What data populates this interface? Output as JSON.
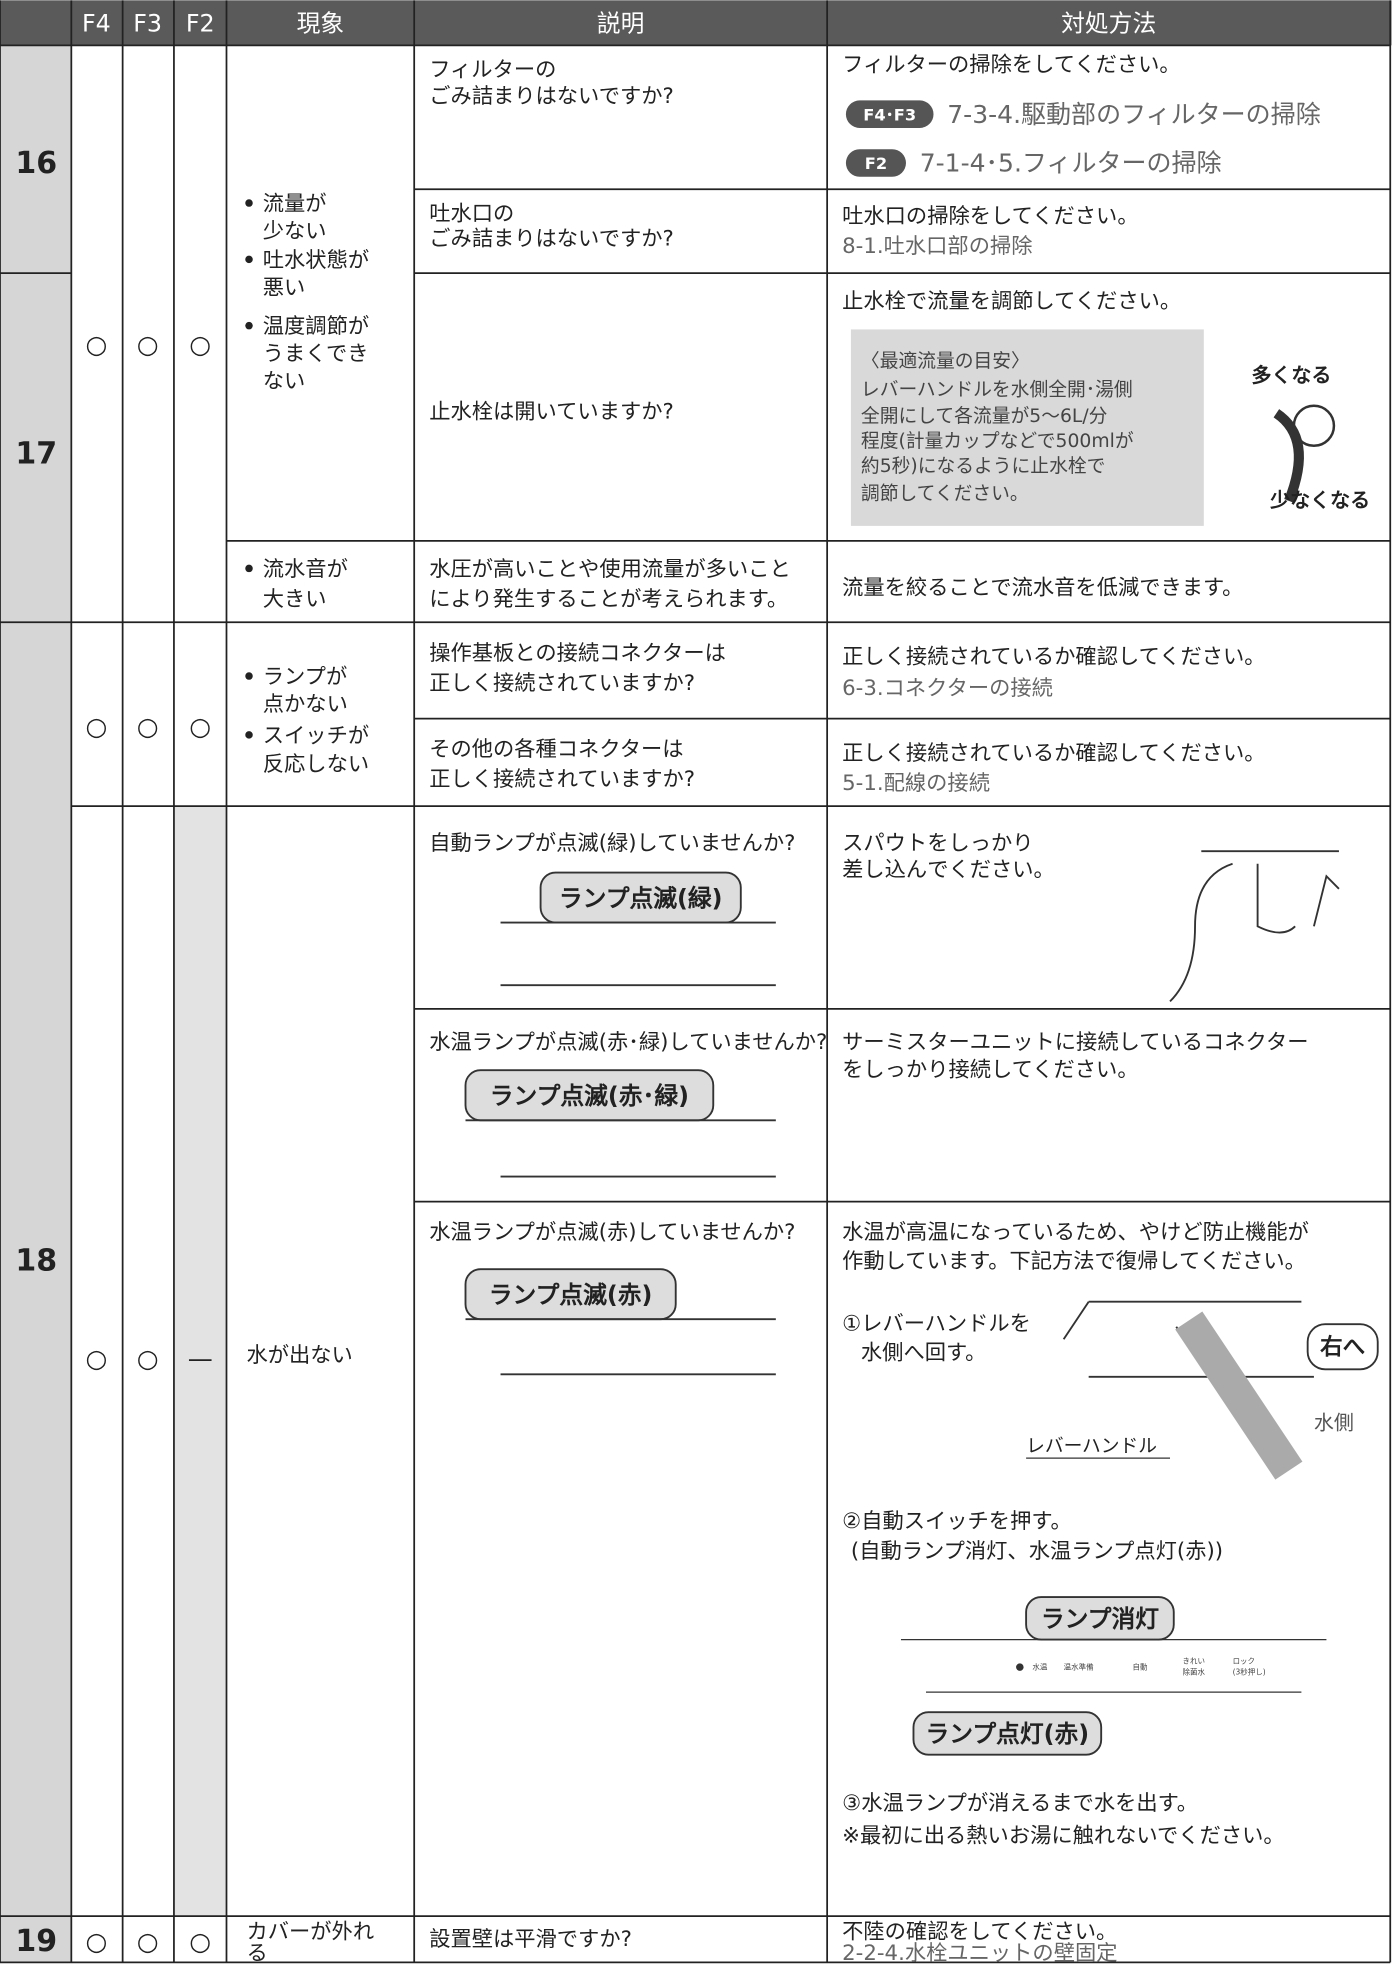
{
  "header": [
    "F4",
    "F3",
    "F2",
    "現象",
    "説明",
    "対処方法"
  ],
  "row_numbers": [
    "16",
    "17",
    "18",
    "19"
  ],
  "marks": {
    "yes": "○",
    "none": "—"
  },
  "symptoms": {
    "flow": [
      "流量が",
      "少ない",
      "吐水状態が",
      "悪い",
      "温度調節が",
      "うまくでき",
      "ない"
    ],
    "noise": [
      "流水音が",
      "大きい"
    ],
    "lamp": [
      "ランプが",
      "点かない",
      "スイッチが",
      "反応しない"
    ],
    "water": "水が出ない",
    "cover": [
      "カバーが外れ",
      "る"
    ]
  },
  "checks": [
    {
      "desc": [
        "フィルターの",
        "ごみ詰まりはないですか?"
      ],
      "remedy": "フィルターの掃除をしてください。",
      "refs": [
        {
          "tag": "F4･F3",
          "text": "7-3-4.駆動部のフィルターの掃除"
        },
        {
          "tag": "F2",
          "text": "7-1-4･5.フィルターの掃除"
        }
      ]
    },
    {
      "desc": [
        "吐水口の",
        "ごみ詰まりはないですか?"
      ],
      "remedy": "吐水口の掃除をしてください。",
      "ref": "8-1.吐水口部の掃除"
    },
    {
      "desc": "止水栓は開いていますか?",
      "remedy": "止水栓で流量を調節してください。",
      "note": [
        "〈最適流量の目安〉",
        "レバーハンドルを水側全開･湯側",
        "全開にして各流量が5～6L/分",
        "程度(計量カップなどで500mlが",
        "約5秒)になるように止水栓で",
        "調節してください。"
      ],
      "labels": [
        "多くなる",
        "少なくなる"
      ]
    },
    {
      "desc": [
        "水圧が高いことや使用流量が多いこと",
        "により発生することが考えられます。"
      ],
      "remedy": "流量を絞ることで流水音を低減できます。"
    },
    {
      "desc": [
        "操作基板との接続コネクターは",
        "正しく接続されていますか?"
      ],
      "remedy": "正しく接続されているか確認してください。",
      "ref": "6-3.コネクターの接続"
    },
    {
      "desc": [
        "その他の各種コネクターは",
        "正しく接続されていますか?"
      ],
      "remedy": "正しく接続されているか確認してください。",
      "ref": "5-1.配線の接続"
    },
    {
      "desc": "自動ランプが点滅(緑)していませんか?",
      "callout": "ランプ点滅(緑)",
      "remedy": [
        "スパウトをしっかり",
        "差し込んでください。"
      ]
    },
    {
      "desc": "水温ランプが点滅(赤･緑)していませんか?",
      "callout": "ランプ点滅(赤･緑)",
      "remedy": [
        "サーミスターユニットに接続しているコネクター",
        "をしっかり接続してください。"
      ]
    },
    {
      "desc": "水温ランプが点滅(赤)していませんか?",
      "callout": "ランプ点滅(赤)",
      "remedy": [
        "水温が高温になっているため、やけど防止機能が",
        "作動しています。下記方法で復帰してください。"
      ],
      "steps": [
        "①レバーハンドルを",
        "水側へ回す。",
        "②自動スイッチを押す。",
        "(自動ランプ消灯、水温ランプ点灯(赤))",
        "③水温ランプが消えるまで水を出す。",
        "※最初に出る熱いお湯に触れないでください。"
      ],
      "labels": [
        "右へ",
        "水側",
        "レバーハンドル",
        "ランプ消灯",
        "ランプ点灯(赤)"
      ],
      "panel": [
        "水温",
        "温水準備",
        "自動",
        "きれい",
        "除菌水",
        "ロック",
        "(3秒押し)"
      ]
    },
    {
      "desc": "設置壁は平滑ですか?",
      "remedy": "不陸の確認をしてください。",
      "ref": "2-2-4.水栓ユニットの壁固定"
    }
  ]
}
